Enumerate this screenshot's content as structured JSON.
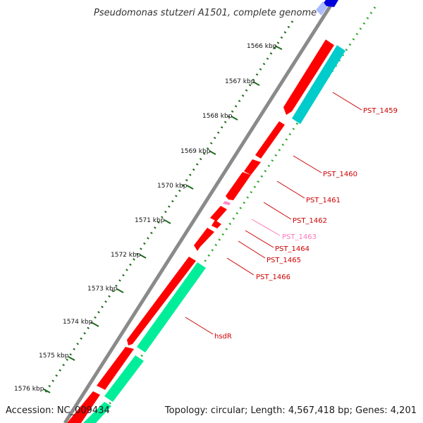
{
  "title": "Pseudomonas stutzeri A1501, complete genome",
  "footer": {
    "accession": "Accession: NC_009434",
    "summary": "Topology: circular; Length: 4,567,418 bp; Genes: 4,201"
  },
  "colors": {
    "backbone": "#8a8a8a",
    "cds_red": "#ff0000",
    "cds_pink": "#ff88cc",
    "cds_cyan": "#00cccc",
    "cds_green": "#00ee99",
    "label_red": "#cc0000",
    "label_pink": "#ff77bb",
    "dots_dark": "#1e6b1e",
    "dots_light": "#2ea82e",
    "blue_feature": "#0000dd",
    "blue_light": "#aabbff"
  },
  "kbp_ticks": [
    "1566 kbp",
    "1567 kbp",
    "1568 kbp",
    "1569 kbp",
    "1570 kbp",
    "1571 kbp",
    "1572 kbp",
    "1573 kbp",
    "1574 kbp",
    "1575 kbp",
    "1576 kbp"
  ],
  "gene_labels": [
    {
      "name": "PST_1459",
      "color": "red"
    },
    {
      "name": "PST_1460",
      "color": "red"
    },
    {
      "name": "PST_1461",
      "color": "red"
    },
    {
      "name": "PST_1462",
      "color": "red"
    },
    {
      "name": "PST_1463",
      "color": "pink"
    },
    {
      "name": "PST_1464",
      "color": "red"
    },
    {
      "name": "PST_1465",
      "color": "red"
    },
    {
      "name": "PST_1466",
      "color": "red"
    },
    {
      "name": "hsdR",
      "color": "red"
    }
  ]
}
